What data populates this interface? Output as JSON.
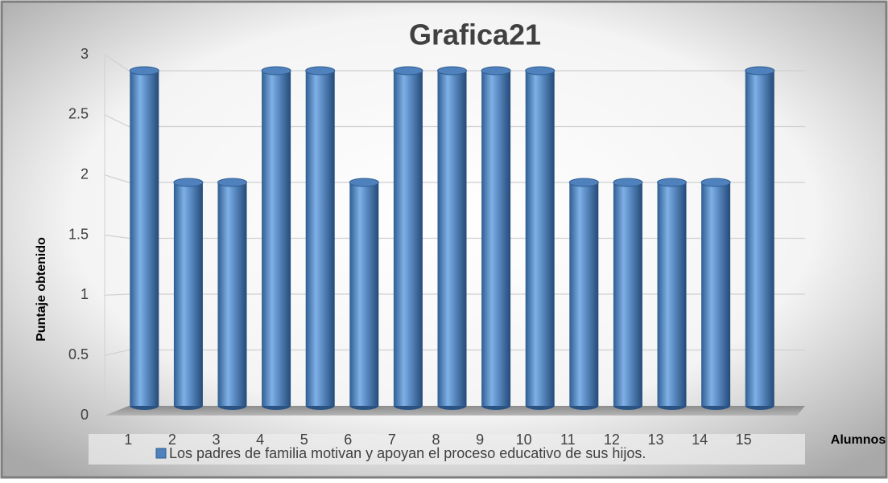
{
  "chart_data": {
    "type": "bar",
    "title": "Grafica21",
    "y_label": "Puntaje obtenido",
    "x_label": "Alumnos",
    "categories": [
      "1",
      "2",
      "3",
      "4",
      "5",
      "6",
      "7",
      "8",
      "9",
      "10",
      "11",
      "12",
      "13",
      "14",
      "15"
    ],
    "series": [
      {
        "name": "Los padres de familia motivan y apoyan el proceso educativo de sus hijos.",
        "color": "#4f81bd",
        "values": [
          3,
          2,
          2,
          3,
          3,
          2,
          3,
          3,
          3,
          3,
          2,
          2,
          2,
          2,
          3
        ]
      }
    ],
    "ylim": [
      0,
      3
    ],
    "yticks": [
      0,
      0.5,
      1,
      1.5,
      2,
      2.5,
      3
    ],
    "grid": true,
    "legend": "bottom"
  }
}
